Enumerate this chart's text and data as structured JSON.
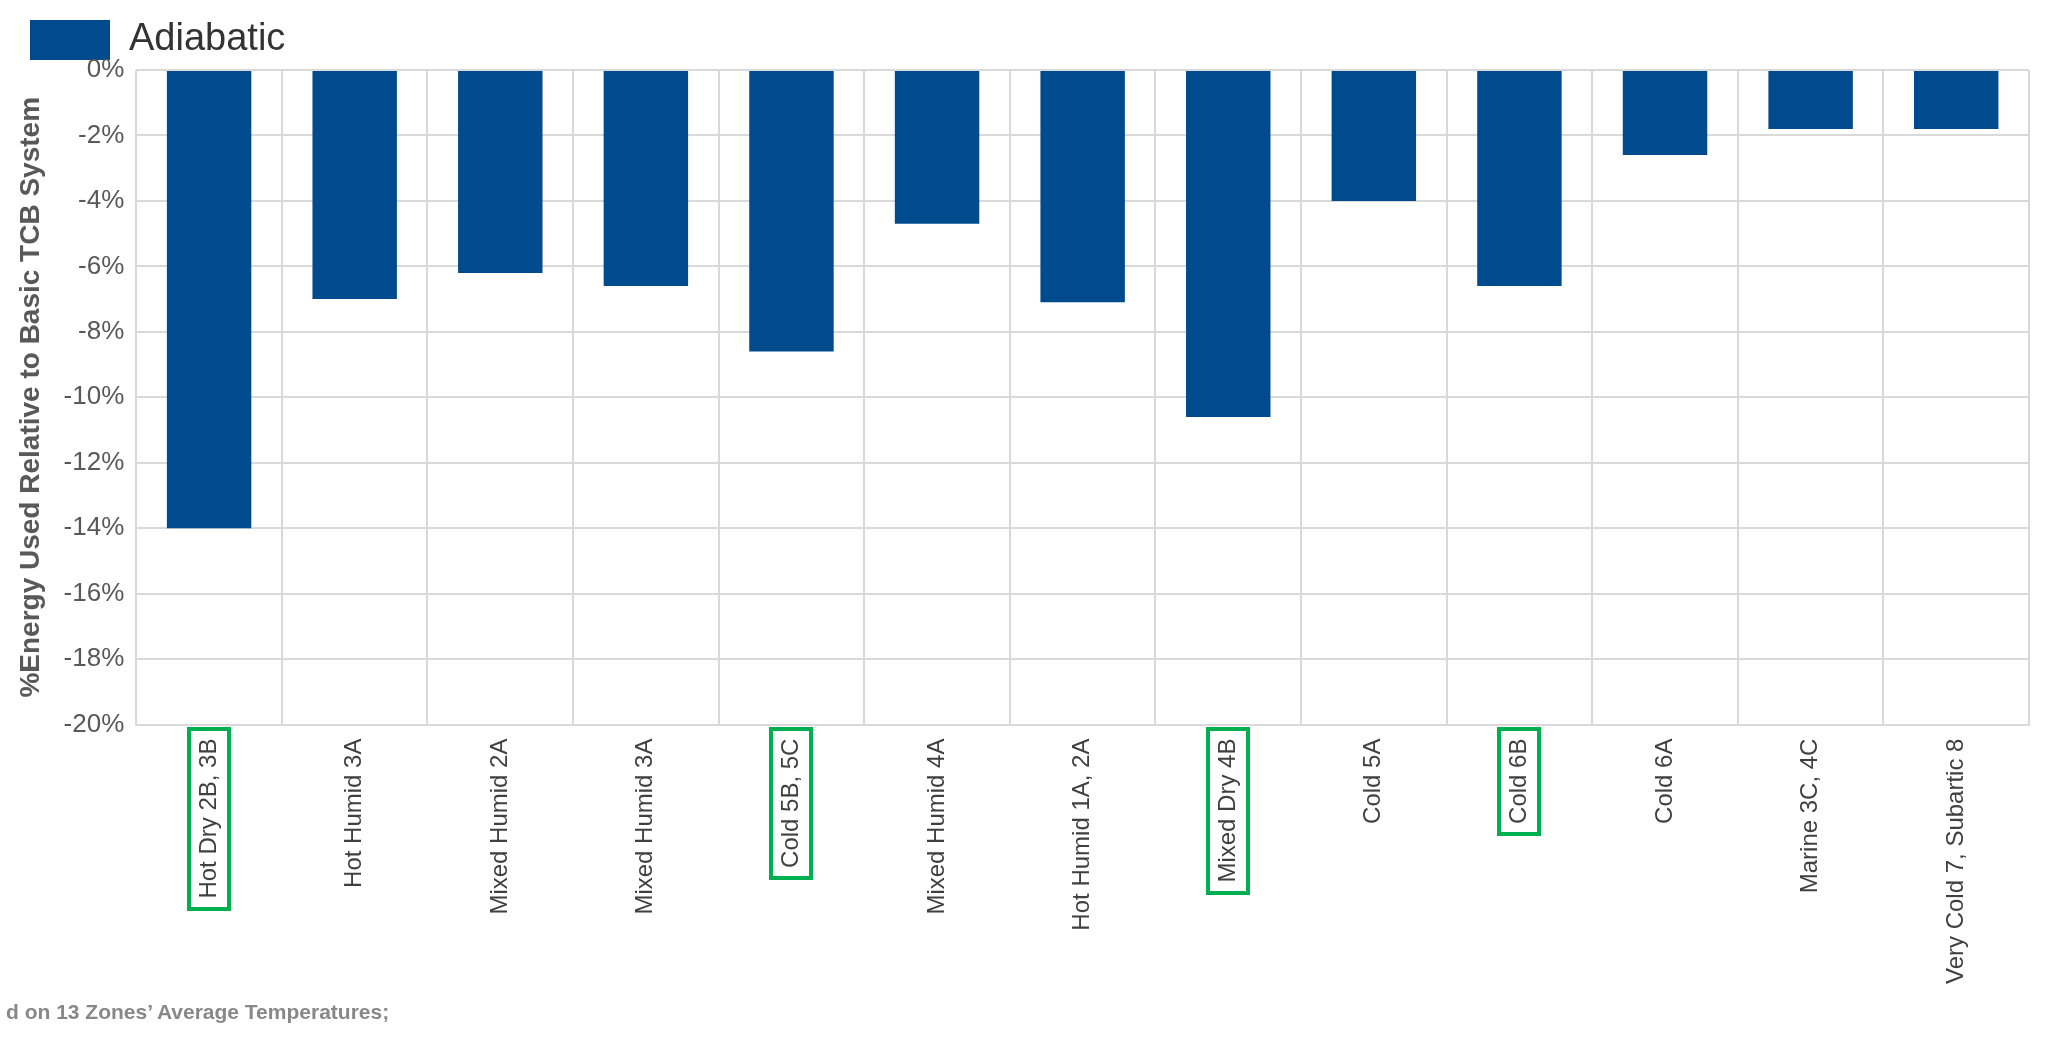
{
  "chart_data": {
    "type": "bar",
    "categories": [
      "Hot Dry 2B, 3B",
      "Hot Humid 3A",
      "Mixed Humid 2A",
      "Mixed Humid 3A",
      "Cold 5B, 5C",
      "Mixed Humid 4A",
      "Hot Humid 1A, 2A",
      "Mixed Dry 4B",
      "Cold 5A",
      "Cold 6B",
      "Cold 6A",
      "Marine 3C, 4C",
      "Very Cold 7, Subartic 8"
    ],
    "series": [
      {
        "name": "Adiabatic",
        "color": "#004b8d",
        "values": [
          -14.0,
          -7.0,
          -6.2,
          -6.6,
          -8.6,
          -4.7,
          -7.1,
          -10.6,
          -4.0,
          -6.6,
          -2.6,
          -1.8,
          -1.8
        ]
      }
    ],
    "ylabel": "%Energy Used Relative to Basic TCB System",
    "ylim": [
      -20,
      0
    ],
    "yticks": [
      {
        "value": 0,
        "label": "0%"
      },
      {
        "value": -2,
        "label": "-2%"
      },
      {
        "value": -4,
        "label": "-4%"
      },
      {
        "value": -6,
        "label": "-6%"
      },
      {
        "value": -8,
        "label": "-8%"
      },
      {
        "value": -10,
        "label": "-10%"
      },
      {
        "value": -12,
        "label": "-12%"
      },
      {
        "value": -14,
        "label": "-14%"
      },
      {
        "value": -16,
        "label": "-16%"
      },
      {
        "value": -18,
        "label": "-18%"
      },
      {
        "value": -20,
        "label": "-20%"
      }
    ],
    "grid": true,
    "legend": "top",
    "annotations": [
      "d on 13 Zones’ Average Temperatures;"
    ]
  }
}
